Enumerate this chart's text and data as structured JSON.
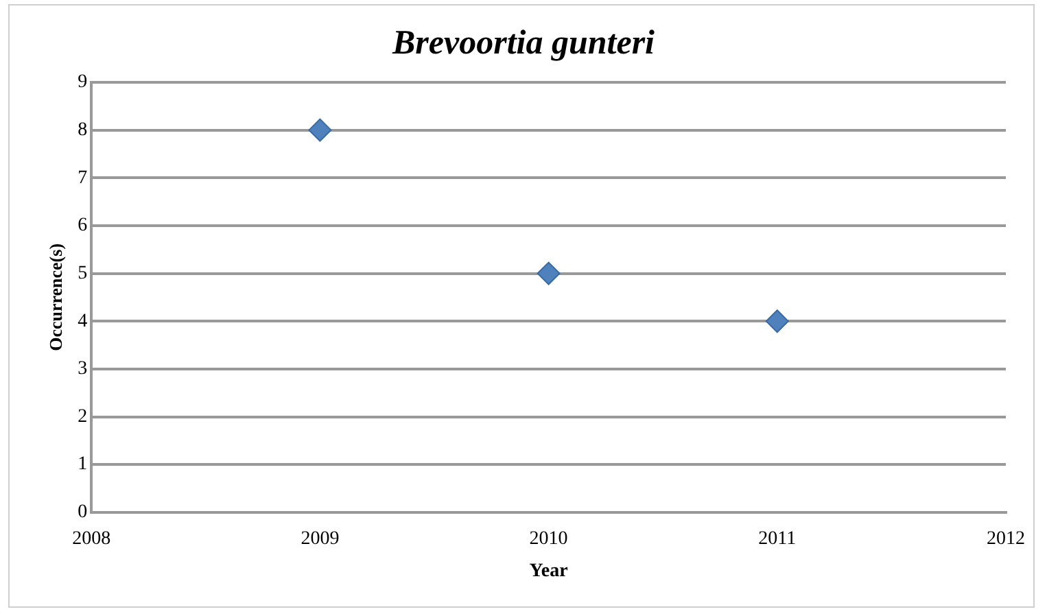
{
  "chart_data": {
    "type": "scatter",
    "title": "Brevoortia gunteri",
    "xlabel": "Year",
    "ylabel": "Occurrence(s)",
    "x": [
      2009,
      2010,
      2011
    ],
    "series": [
      {
        "color": "#4f81bd",
        "values": [
          8,
          5,
          4
        ]
      }
    ],
    "xlim": [
      2008,
      2012
    ],
    "xticks": [
      2008,
      2009,
      2010,
      2011,
      2012
    ],
    "ylim": [
      0,
      9
    ],
    "yticks": [
      0,
      1,
      2,
      3,
      4,
      5,
      6,
      7,
      8,
      9
    ],
    "grid": "y",
    "legend": false,
    "marker": "diamond"
  }
}
